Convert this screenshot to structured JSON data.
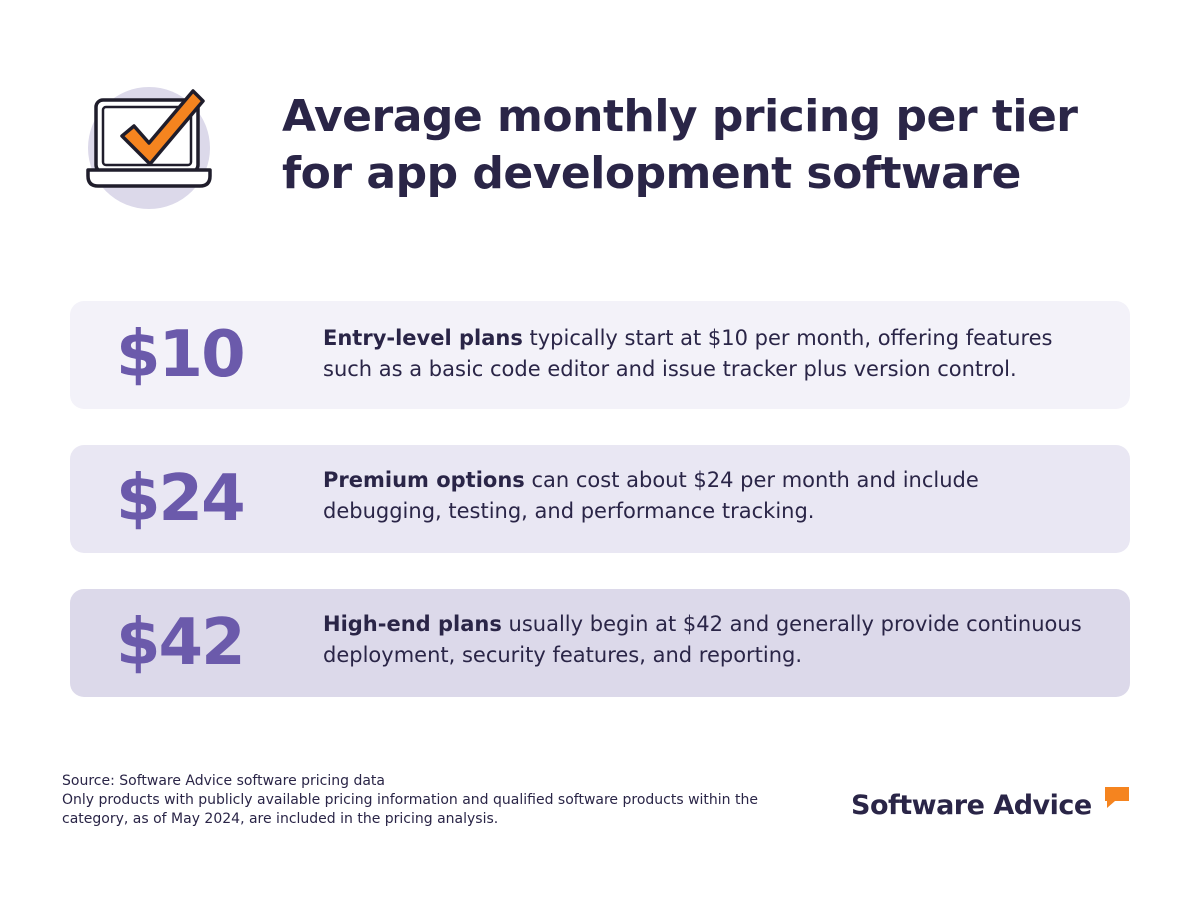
{
  "header": {
    "icon": "laptop-checkmark-icon",
    "title": "Average monthly pricing per tier for app development software"
  },
  "tiers": [
    {
      "price": "$10",
      "lead": "Entry-level plans",
      "text": " typically start at $10 per month, offering features such as a basic code editor and issue tracker plus version control."
    },
    {
      "price": "$24",
      "lead": "Premium options",
      "text": " can cost about $24 per month and include debugging, testing, and performance tracking."
    },
    {
      "price": "$42",
      "lead": "High-end plans",
      "text": " usually begin at $42 and generally provide continuous deployment, security features, and reporting."
    }
  ],
  "footer": {
    "source": "Source: Software Advice software pricing data",
    "note": "Only products with publicly available pricing information and qualified software products within the category, as of May 2024, are included in the pricing analysis.",
    "logo_text": "Software Advice",
    "logo_icon": "speech-bubble-icon"
  },
  "colors": {
    "accent": "#6b5aab",
    "text": "#2a2547",
    "orange": "#f5841f",
    "card_1": "#f3f2f9",
    "card_2": "#e9e7f3",
    "card_3": "#dcd9ea"
  }
}
